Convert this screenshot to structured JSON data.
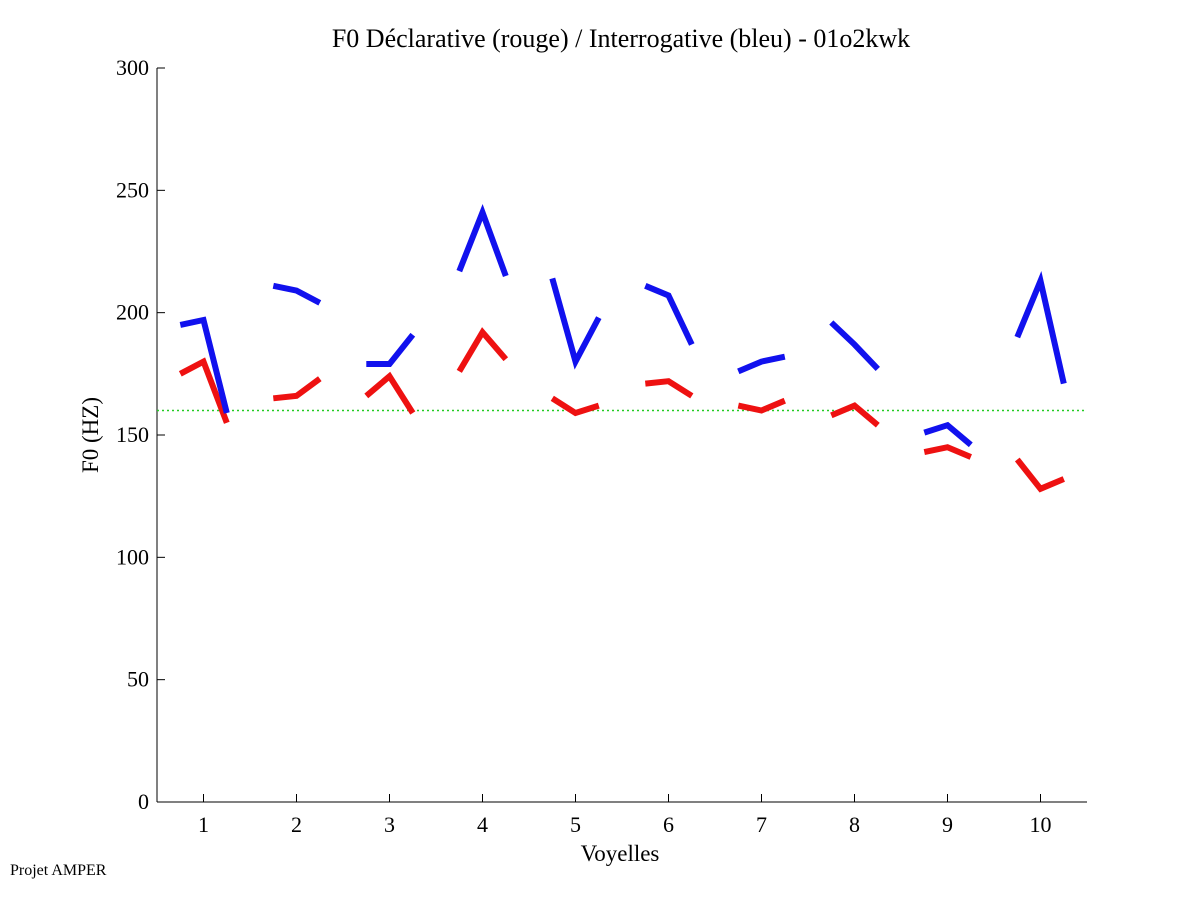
{
  "chart_data": {
    "type": "line",
    "title": "F0 Déclarative (rouge) / Interrogative (bleu) - 01o2kwk",
    "xlabel": "Voyelles",
    "ylabel": "F0 (HZ)",
    "xlim": [
      0.5,
      10.5
    ],
    "ylim": [
      0,
      300
    ],
    "xticks": [
      "1",
      "2",
      "3",
      "4",
      "5",
      "6",
      "7",
      "8",
      "9",
      "10"
    ],
    "yticks": [
      "0",
      "50",
      "100",
      "150",
      "200",
      "250",
      "300"
    ],
    "reference_line": {
      "y": 160,
      "style": "dotted",
      "color": "#22cc22"
    },
    "offsets": [
      -0.25,
      0,
      0.25
    ],
    "series": [
      {
        "color": "#ee1111",
        "segments": [
          [
            175,
            180,
            155
          ],
          [
            165,
            166,
            173
          ],
          [
            166,
            174,
            159
          ],
          [
            176,
            192,
            181
          ],
          [
            165,
            159,
            162
          ],
          [
            171,
            172,
            166
          ],
          [
            162,
            160,
            164
          ],
          [
            158,
            162,
            154
          ],
          [
            143,
            145,
            141
          ],
          [
            140,
            128,
            132
          ]
        ]
      },
      {
        "color": "#1111ee",
        "segments": [
          [
            195,
            197,
            159
          ],
          [
            211,
            209,
            204
          ],
          [
            179,
            179,
            191
          ],
          [
            217,
            241,
            215
          ],
          [
            214,
            180,
            198
          ],
          [
            211,
            207,
            187
          ],
          [
            176,
            180,
            182
          ],
          [
            196,
            187,
            177
          ],
          [
            151,
            154,
            146
          ],
          [
            190,
            213,
            171
          ]
        ]
      }
    ]
  },
  "footer": {
    "label": "Projet AMPER"
  }
}
